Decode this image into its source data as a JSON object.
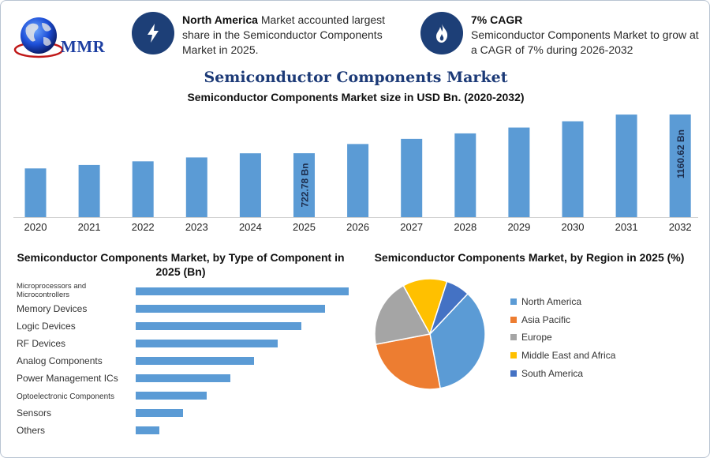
{
  "logo": {
    "text": "MMR"
  },
  "highlights": [
    {
      "icon": "lightning-icon",
      "bold": "North America",
      "text": " Market accounted largest share in the Semiconductor Components Market in 2025."
    },
    {
      "icon": "flame-icon",
      "bold": "7% CAGR",
      "text": "Semiconductor Components Market to grow at a CAGR of 7% during 2026-2032"
    }
  ],
  "title": "Semiconductor Components Market",
  "subtitle": "Semiconductor Components Market size in USD Bn. (2020-2032)",
  "type_title": "Semiconductor Components Market, by Type of Component in 2025 (Bn)",
  "region_title": "Semiconductor Components Market, by Region in 2025 (%)",
  "colors": {
    "bar": "#5b9bd5",
    "icon_bg": "#1d3f77",
    "north_america": "#5b9bd5",
    "asia_pacific": "#ed7d31",
    "europe": "#a5a5a5",
    "mea": "#ffc000",
    "south_america": "#4472c4"
  },
  "chart_data": [
    {
      "type": "bar",
      "title": "Semiconductor Components Market size in USD Bn. (2020-2032)",
      "categories": [
        "2020",
        "2021",
        "2022",
        "2023",
        "2024",
        "2025",
        "2026",
        "2027",
        "2028",
        "2029",
        "2030",
        "2031",
        "2032"
      ],
      "values": [
        551,
        590,
        631,
        675,
        722,
        722.78,
        827,
        885,
        947,
        1013,
        1084,
        1160,
        1160.62
      ],
      "data_labels": [
        {
          "category": "2025",
          "text": "722.78 Bn"
        },
        {
          "category": "2032",
          "text": "1160.62 Bn"
        }
      ]
    },
    {
      "type": "bar",
      "orientation": "horizontal",
      "title": "Semiconductor Components Market, by Type of Component in 2025 (Bn)",
      "categories": [
        "Microprocessors and Microcontrollers",
        "Memory Devices",
        "Logic Devices",
        "RF Devices",
        "Analog Components",
        "Power Management ICs",
        "Optoelectronic Components",
        "Sensors",
        "Others"
      ],
      "values": [
        9,
        8,
        7,
        6,
        5,
        4,
        3,
        2,
        1
      ]
    },
    {
      "type": "pie",
      "title": "Semiconductor Components Market, by Region in 2025 (%)",
      "categories": [
        "North America",
        "Asia Pacific",
        "Europe",
        "Middle East and Africa",
        "South America"
      ],
      "values": [
        35,
        25,
        20,
        13,
        7
      ]
    }
  ]
}
